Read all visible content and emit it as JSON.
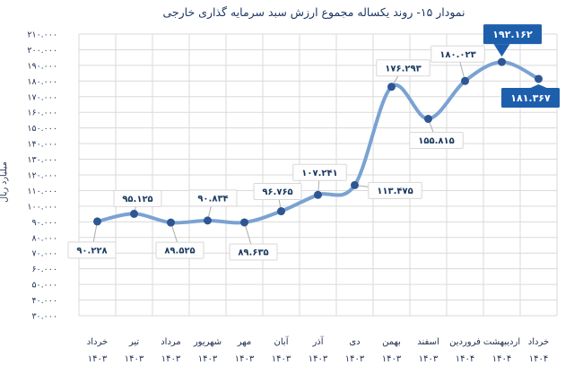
{
  "chart_data": {
    "type": "line",
    "title": "نمودار ۱۵- روند یکساله مجموع ارزش سبد سرمایه گذاری خارجی",
    "xlabel": "",
    "ylabel": "میلیارد ریال",
    "ylim": [
      30000,
      210000
    ],
    "ytick_step": 10000,
    "grid": true,
    "legend": "none",
    "smoothed_line": true,
    "ytick_labels": [
      "۲۱۰.۰۰۰",
      "۲۰۰.۰۰۰",
      "۱۹۰.۰۰۰",
      "۱۸۰.۰۰۰",
      "۱۷۰.۰۰۰",
      "۱۶۰.۰۰۰",
      "۱۵۰.۰۰۰",
      "۱۴۰.۰۰۰",
      "۱۳۰.۰۰۰",
      "۱۲۰.۰۰۰",
      "۱۱۰.۰۰۰",
      "۱۰۰.۰۰۰",
      "۹۰.۰۰۰",
      "۸۰.۰۰۰",
      "۷۰.۰۰۰",
      "۶۰.۰۰۰",
      "۵۰.۰۰۰",
      "۴۰.۰۰۰",
      "۳۰.۰۰۰"
    ],
    "categories": [
      {
        "month": "خرداد",
        "year": "۱۴۰۳"
      },
      {
        "month": "تیر",
        "year": "۱۴۰۳"
      },
      {
        "month": "مرداد",
        "year": "۱۴۰۳"
      },
      {
        "month": "شهریور",
        "year": "۱۴۰۳"
      },
      {
        "month": "مهر",
        "year": "۱۴۰۳"
      },
      {
        "month": "آبان",
        "year": "۱۴۰۳"
      },
      {
        "month": "آذر",
        "year": "۱۴۰۳"
      },
      {
        "month": "دی",
        "year": "۱۴۰۳"
      },
      {
        "month": "بهمن",
        "year": "۱۴۰۳"
      },
      {
        "month": "اسفند",
        "year": "۱۴۰۳"
      },
      {
        "month": "فروردین",
        "year": "۱۴۰۴"
      },
      {
        "month": "اردیبهشت",
        "year": "۱۴۰۴"
      },
      {
        "month": "خرداد",
        "year": "۱۴۰۴"
      }
    ],
    "series": [
      {
        "name": "",
        "values": [
          90228,
          95125,
          89525,
          90834,
          89635,
          96765,
          107241,
          113475,
          176293,
          155815,
          180023,
          192162,
          181367
        ],
        "labels": [
          "۹۰.۲۲۸",
          "۹۵.۱۲۵",
          "۸۹.۵۲۵",
          "۹۰.۸۳۴",
          "۸۹.۶۳۵",
          "۹۶.۷۶۵",
          "۱۰۷.۲۴۱",
          "۱۱۳.۴۷۵",
          "۱۷۶.۲۹۳",
          "۱۵۵.۸۱۵",
          "۱۸۰.۰۲۳",
          "۱۹۲.۱۶۲",
          "۱۸۱.۳۶۷"
        ],
        "label_offsets": [
          [
            -6,
            32
          ],
          [
            4,
            -17
          ],
          [
            10,
            31
          ],
          [
            6,
            -25
          ],
          [
            10,
            33
          ],
          [
            -4,
            -22
          ],
          [
            2,
            -25
          ],
          [
            45,
            6
          ],
          [
            13,
            -21
          ],
          [
            9,
            24
          ],
          [
            -8,
            -30
          ],
          [
            12,
            -31
          ],
          [
            -9,
            21
          ]
        ],
        "highlighted_indices": [
          11,
          12
        ]
      }
    ],
    "colors": {
      "background": "#FFFFFF",
      "grid": "#DADADA",
      "line": "#7AA2D2",
      "marker": "#2E5693",
      "label_box_bg": "#FEFEFE",
      "label_box_border": "#D8D8D8",
      "label_text": "#17375E",
      "leader_line": "#ADADAD",
      "highlight_bg": "#1E5FAD",
      "highlight_text": "#FFFFFF",
      "axis_text": "#1F3050",
      "title_text": "#1F3864"
    }
  }
}
